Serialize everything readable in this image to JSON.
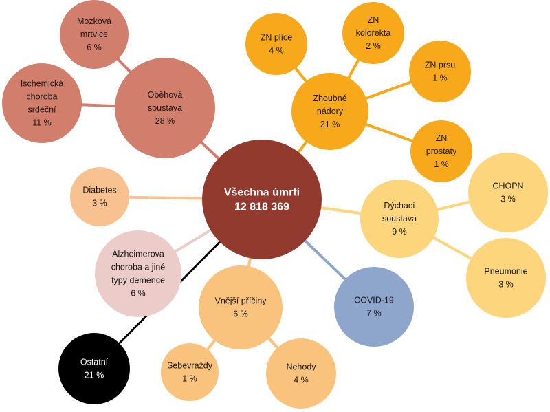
{
  "diagram": {
    "type": "bubble-hierarchy",
    "center": {
      "lines": [
        "Všechna úmrtí",
        "12 818 369"
      ],
      "color": "#933a2e"
    },
    "bubbles": [
      {
        "id": "obehova",
        "lines": [
          "Oběhová",
          "soustava"
        ],
        "value": "28 %",
        "color": "#d27e6c"
      },
      {
        "id": "mozkova",
        "lines": [
          "Mozková",
          "mrtvice"
        ],
        "value": "6 %",
        "color": "#d27e6c"
      },
      {
        "id": "ischemicka",
        "lines": [
          "Ischemická",
          "choroba",
          "srdeční"
        ],
        "value": "11 %",
        "color": "#d27e6c"
      },
      {
        "id": "zhoubne",
        "lines": [
          "Zhoubné",
          "nádory"
        ],
        "value": "21 %",
        "color": "#f7a81b"
      },
      {
        "id": "zn-plice",
        "lines": [
          "ZN plíce"
        ],
        "value": "4 %",
        "color": "#f7a81b"
      },
      {
        "id": "zn-kolorekta",
        "lines": [
          "ZN",
          "kolorekta"
        ],
        "value": "2 %",
        "color": "#f7a81b"
      },
      {
        "id": "zn-prsu",
        "lines": [
          "ZN prsu"
        ],
        "value": "1 %",
        "color": "#f7a81b"
      },
      {
        "id": "zn-prostaty",
        "lines": [
          "ZN",
          "prostaty"
        ],
        "value": "1 %",
        "color": "#f7a81b"
      },
      {
        "id": "dychaci",
        "lines": [
          "Dýchací",
          "soustava"
        ],
        "value": "9 %",
        "color": "#fdd57c"
      },
      {
        "id": "chopn",
        "lines": [
          "CHOPN"
        ],
        "value": "3 %",
        "color": "#fdd57c"
      },
      {
        "id": "pneumonie",
        "lines": [
          "Pneumonie"
        ],
        "value": "3 %",
        "color": "#fdd57c"
      },
      {
        "id": "covid",
        "lines": [
          "COVID-19"
        ],
        "value": "7 %",
        "color": "#8fa6cc"
      },
      {
        "id": "vnejsi",
        "lines": [
          "Vnější příčiny"
        ],
        "value": "6 %",
        "color": "#f9c27d"
      },
      {
        "id": "sebevrazdy",
        "lines": [
          "Sebevraždy"
        ],
        "value": "1 %",
        "color": "#f9c27d"
      },
      {
        "id": "nehody",
        "lines": [
          "Nehody"
        ],
        "value": "4 %",
        "color": "#f9c27d"
      },
      {
        "id": "diabetes",
        "lines": [
          "Diabetes"
        ],
        "value": "3 %",
        "color": "#f8c190"
      },
      {
        "id": "alzheimer",
        "lines": [
          "Alzheimerova",
          "choroba a jiné",
          "typy demence"
        ],
        "value": "6 %",
        "color": "#ecccc8"
      },
      {
        "id": "ostatni",
        "lines": [
          "Ostatní"
        ],
        "value": "21 %",
        "color": "#000000"
      }
    ],
    "connections": [
      {
        "from": "center",
        "to": "obehova",
        "color": "#d27e6c"
      },
      {
        "from": "obehova",
        "to": "mozkova",
        "color": "#d27e6c"
      },
      {
        "from": "obehova",
        "to": "ischemicka",
        "color": "#d27e6c"
      },
      {
        "from": "center",
        "to": "zhoubne",
        "color": "#f7a81b"
      },
      {
        "from": "zhoubne",
        "to": "zn-plice",
        "color": "#f7a81b"
      },
      {
        "from": "zhoubne",
        "to": "zn-kolorekta",
        "color": "#f7a81b"
      },
      {
        "from": "zhoubne",
        "to": "zn-prsu",
        "color": "#f7a81b"
      },
      {
        "from": "zhoubne",
        "to": "zn-prostaty",
        "color": "#f7a81b"
      },
      {
        "from": "center",
        "to": "dychaci",
        "color": "#fdd57c"
      },
      {
        "from": "dychaci",
        "to": "chopn",
        "color": "#fdd57c"
      },
      {
        "from": "dychaci",
        "to": "pneumonie",
        "color": "#fdd57c"
      },
      {
        "from": "center",
        "to": "covid",
        "color": "#8fa6cc"
      },
      {
        "from": "center",
        "to": "vnejsi",
        "color": "#f9c27d"
      },
      {
        "from": "vnejsi",
        "to": "sebevrazdy",
        "color": "#f9c27d"
      },
      {
        "from": "vnejsi",
        "to": "nehody",
        "color": "#f9c27d"
      },
      {
        "from": "center",
        "to": "diabetes",
        "color": "#f8c190"
      },
      {
        "from": "center",
        "to": "alzheimer",
        "color": "#ecccc8"
      },
      {
        "from": "center",
        "to": "ostatni",
        "color": "#000000"
      }
    ]
  }
}
